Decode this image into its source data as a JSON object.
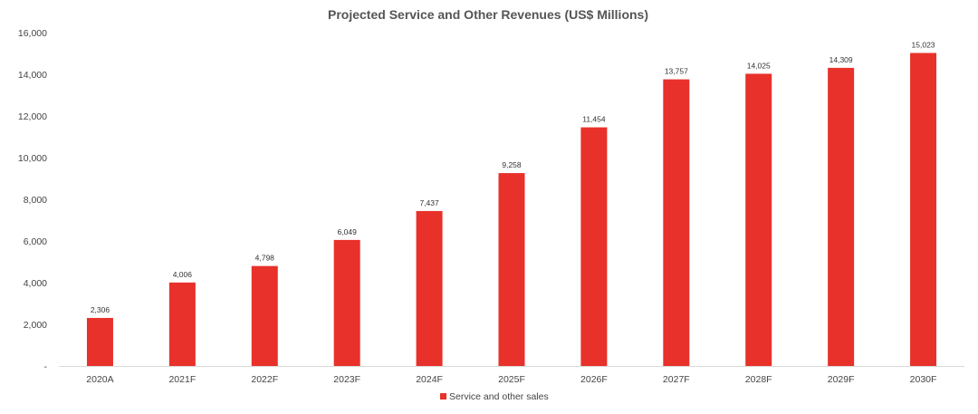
{
  "chart_data": {
    "type": "bar",
    "title": "Projected Service and Other Revenues (US$ Millions)",
    "xlabel": "",
    "ylabel": "",
    "categories": [
      "2020A",
      "2021F",
      "2022F",
      "2023F",
      "2024F",
      "2025F",
      "2026F",
      "2027F",
      "2028F",
      "2029F",
      "2030F"
    ],
    "series": [
      {
        "name": "Service and other sales",
        "color": "#e8312a",
        "values": [
          2306,
          4006,
          4798,
          6049,
          7437,
          9258,
          11454,
          13757,
          14025,
          14309,
          15023
        ],
        "value_labels": [
          "2,306",
          "4,006",
          "4,798",
          "6,049",
          "7,437",
          "9,258",
          "11,454",
          "13,757",
          "14,025",
          "14,309",
          "15,023"
        ]
      }
    ],
    "ylim": [
      0,
      16000
    ],
    "yticks": [
      0,
      2000,
      4000,
      6000,
      8000,
      10000,
      12000,
      14000,
      16000
    ],
    "ytick_labels": [
      "-",
      "2,000",
      "4,000",
      "6,000",
      "8,000",
      "10,000",
      "12,000",
      "14,000",
      "16,000"
    ],
    "grid": false,
    "legend_position": "bottom"
  }
}
